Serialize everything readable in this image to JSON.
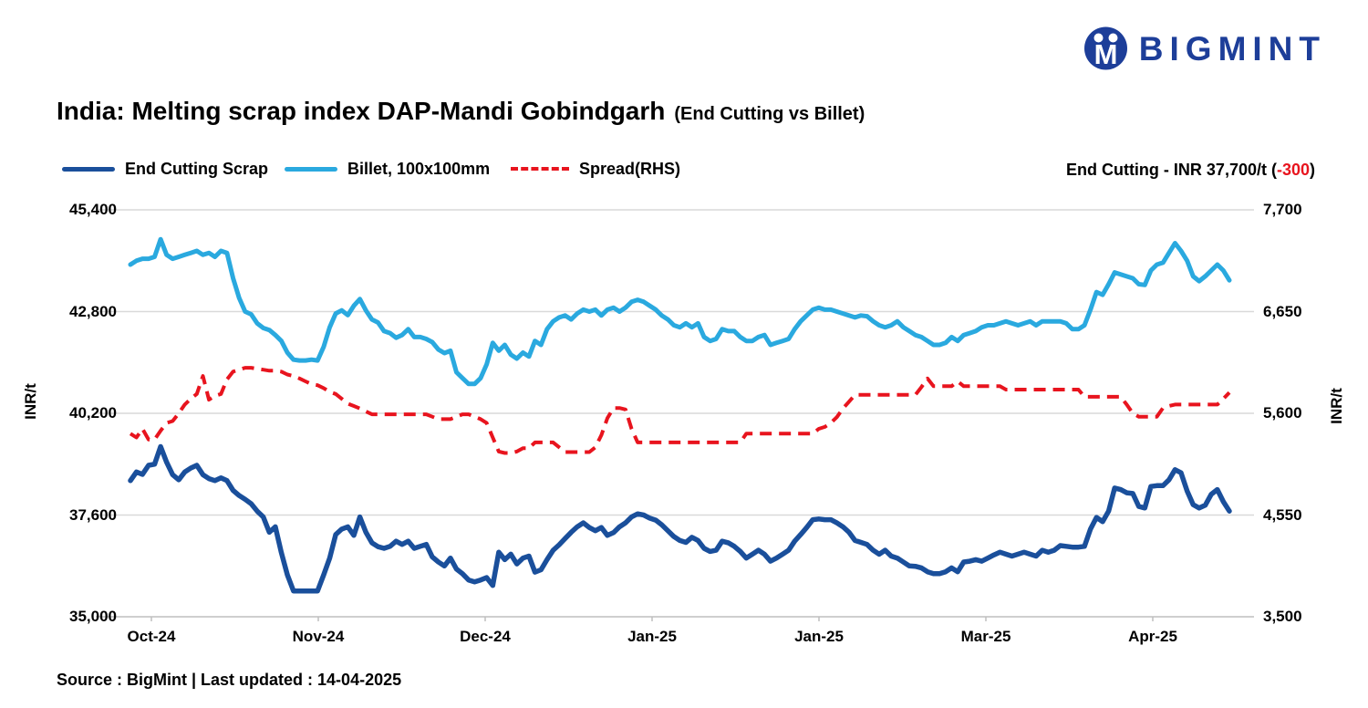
{
  "logo": {
    "text": "BIGMINT",
    "color": "#1d3e99"
  },
  "title": {
    "main": "India: Melting scrap index DAP-Mandi Gobindgarh",
    "suffix": "(End Cutting vs Billet)"
  },
  "legend": [
    {
      "label": "End Cutting Scrap",
      "color": "#1a4f9b",
      "style": "solid"
    },
    {
      "label": "Billet, 100x100mm",
      "color": "#2aa9df",
      "style": "solid"
    },
    {
      "label": "Spread(RHS)",
      "color": "#e8141e",
      "style": "dashed"
    }
  ],
  "annotation": {
    "prefix": "End Cutting - INR 37,700/t (",
    "change": "-300",
    "suffix": ")",
    "change_color": "#e8141e"
  },
  "source": "Source : BigMint | Last updated : 14-04-2025",
  "chart_data": {
    "type": "line",
    "title": "India: Melting scrap index DAP-Mandi Gobindgarh (End Cutting vs Billet)",
    "grid": true,
    "legend_position": "top",
    "x_tick_labels": [
      "Oct-24",
      "Nov-24",
      "Dec-24",
      "Jan-25",
      "Jan-25",
      "Mar-25",
      "Apr-25"
    ],
    "y_axis_left": {
      "title": "INR/t",
      "min": 35000,
      "max": 45400,
      "ticks": [
        "45,400",
        "42,800",
        "40,200",
        "37,600",
        "35,000"
      ]
    },
    "y_axis_right": {
      "title": "INR/t",
      "min": 3500,
      "max": 7700,
      "ticks": [
        "7,700",
        "6,650",
        "5,600",
        "4,550",
        "3,500"
      ]
    },
    "series": [
      {
        "name": "End Cutting Scrap",
        "axis": "left",
        "color": "#1a4f9b",
        "style": "solid",
        "width": 5.5,
        "values": [
          38480,
          38700,
          38640,
          38870,
          38900,
          39350,
          38950,
          38630,
          38500,
          38700,
          38800,
          38870,
          38630,
          38530,
          38480,
          38550,
          38480,
          38230,
          38100,
          38000,
          37890,
          37700,
          37550,
          37160,
          37300,
          36640,
          36070,
          35660,
          35660,
          35660,
          35660,
          35660,
          36070,
          36500,
          37100,
          37240,
          37300,
          37080,
          37550,
          37160,
          36890,
          36790,
          36750,
          36800,
          36930,
          36850,
          36930,
          36750,
          36800,
          36850,
          36530,
          36400,
          36300,
          36500,
          36220,
          36100,
          35940,
          35890,
          35940,
          36000,
          35800,
          36650,
          36460,
          36600,
          36350,
          36500,
          36550,
          36140,
          36200,
          36460,
          36700,
          36840,
          37000,
          37160,
          37300,
          37400,
          37280,
          37200,
          37280,
          37080,
          37150,
          37300,
          37400,
          37550,
          37630,
          37600,
          37520,
          37470,
          37350,
          37200,
          37050,
          36950,
          36900,
          37030,
          36950,
          36750,
          36670,
          36700,
          36930,
          36890,
          36800,
          36670,
          36500,
          36600,
          36700,
          36600,
          36420,
          36500,
          36600,
          36700,
          36930,
          37100,
          37280,
          37480,
          37500,
          37480,
          37480,
          37400,
          37300,
          37160,
          36950,
          36900,
          36850,
          36700,
          36600,
          36700,
          36550,
          36500,
          36400,
          36300,
          36290,
          36250,
          36150,
          36100,
          36100,
          36150,
          36250,
          36150,
          36400,
          36420,
          36460,
          36420,
          36500,
          36580,
          36650,
          36600,
          36550,
          36600,
          36650,
          36600,
          36550,
          36700,
          36650,
          36700,
          36820,
          36800,
          36780,
          36780,
          36800,
          37240,
          37540,
          37430,
          37700,
          38290,
          38250,
          38170,
          38150,
          37820,
          37780,
          38330,
          38350,
          38350,
          38500,
          38760,
          38680,
          38210,
          37865,
          37780,
          37850,
          38130,
          38250,
          37940,
          37700
        ]
      },
      {
        "name": "Billet, 100x100mm",
        "axis": "left",
        "color": "#2aa9df",
        "style": "solid",
        "width": 5,
        "values": [
          44000,
          44100,
          44150,
          44150,
          44200,
          44650,
          44250,
          44150,
          44200,
          44250,
          44300,
          44350,
          44250,
          44300,
          44200,
          44350,
          44300,
          43650,
          43150,
          42800,
          42730,
          42500,
          42380,
          42330,
          42200,
          42050,
          41750,
          41570,
          41550,
          41550,
          41570,
          41550,
          41900,
          42400,
          42750,
          42830,
          42710,
          42950,
          43120,
          42830,
          42600,
          42520,
          42300,
          42250,
          42130,
          42200,
          42350,
          42150,
          42150,
          42100,
          42020,
          41830,
          41740,
          41800,
          41250,
          41100,
          40950,
          40950,
          41100,
          41450,
          42000,
          41800,
          41950,
          41700,
          41600,
          41750,
          41650,
          42050,
          41950,
          42350,
          42550,
          42650,
          42700,
          42600,
          42750,
          42850,
          42800,
          42850,
          42700,
          42850,
          42900,
          42800,
          42900,
          43050,
          43100,
          43050,
          42950,
          42850,
          42700,
          42600,
          42450,
          42400,
          42500,
          42400,
          42500,
          42150,
          42050,
          42100,
          42350,
          42300,
          42300,
          42150,
          42050,
          42050,
          42150,
          42200,
          41950,
          42000,
          42050,
          42100,
          42350,
          42550,
          42700,
          42850,
          42900,
          42850,
          42850,
          42800,
          42750,
          42700,
          42650,
          42700,
          42680,
          42550,
          42450,
          42400,
          42450,
          42550,
          42400,
          42300,
          42200,
          42150,
          42050,
          41950,
          41950,
          42000,
          42150,
          42050,
          42200,
          42250,
          42300,
          42400,
          42450,
          42450,
          42500,
          42550,
          42500,
          42450,
          42500,
          42550,
          42450,
          42550,
          42550,
          42550,
          42550,
          42500,
          42350,
          42350,
          42450,
          42850,
          43300,
          43230,
          43500,
          43800,
          43750,
          43700,
          43650,
          43500,
          43480,
          43850,
          44000,
          44050,
          44300,
          44550,
          44350,
          44100,
          43700,
          43580,
          43700,
          43850,
          44000,
          43850,
          43600
        ]
      },
      {
        "name": "Spread(RHS)",
        "axis": "right",
        "color": "#e8141e",
        "style": "dashed",
        "width": 4,
        "values": [
          5390,
          5350,
          5440,
          5330,
          5330,
          5420,
          5500,
          5520,
          5600,
          5690,
          5750,
          5800,
          5985,
          5740,
          5780,
          5800,
          5950,
          6030,
          6050,
          6070,
          6070,
          6060,
          6050,
          6040,
          6040,
          6030,
          6000,
          5985,
          5960,
          5930,
          5900,
          5890,
          5860,
          5820,
          5800,
          5750,
          5700,
          5675,
          5650,
          5620,
          5590,
          5590,
          5590,
          5590,
          5590,
          5590,
          5590,
          5590,
          5590,
          5590,
          5565,
          5540,
          5540,
          5540,
          5565,
          5590,
          5590,
          5565,
          5540,
          5500,
          5350,
          5205,
          5190,
          5190,
          5205,
          5240,
          5240,
          5300,
          5300,
          5300,
          5300,
          5250,
          5200,
          5200,
          5200,
          5200,
          5200,
          5250,
          5375,
          5550,
          5655,
          5655,
          5640,
          5440,
          5300,
          5300,
          5300,
          5300,
          5300,
          5300,
          5300,
          5300,
          5300,
          5300,
          5300,
          5300,
          5300,
          5300,
          5300,
          5300,
          5300,
          5300,
          5390,
          5390,
          5390,
          5390,
          5390,
          5390,
          5390,
          5390,
          5390,
          5390,
          5390,
          5390,
          5440,
          5460,
          5500,
          5560,
          5650,
          5720,
          5790,
          5790,
          5790,
          5790,
          5790,
          5790,
          5790,
          5790,
          5790,
          5790,
          5790,
          5870,
          5960,
          5880,
          5880,
          5880,
          5880,
          5930,
          5880,
          5880,
          5880,
          5880,
          5880,
          5880,
          5880,
          5845,
          5845,
          5845,
          5845,
          5845,
          5845,
          5845,
          5845,
          5845,
          5845,
          5845,
          5845,
          5845,
          5770,
          5770,
          5770,
          5770,
          5770,
          5770,
          5770,
          5690,
          5600,
          5565,
          5565,
          5565,
          5565,
          5655,
          5675,
          5690,
          5690,
          5690,
          5690,
          5690,
          5690,
          5690,
          5690,
          5750,
          5815
        ]
      }
    ]
  }
}
